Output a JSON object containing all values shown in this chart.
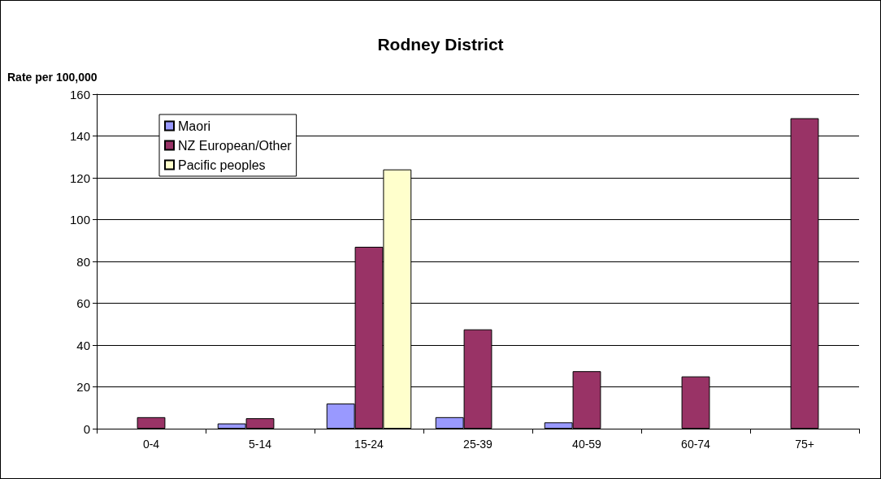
{
  "chart_data": {
    "type": "bar",
    "title": "Rodney District",
    "ylabel": "Rate per 100,000",
    "categories": [
      "0-4",
      "5-14",
      "15-24",
      "25-39",
      "40-59",
      "60-74",
      "75+"
    ],
    "series": [
      {
        "name": "Maori",
        "color": "#9999ff",
        "values": [
          null,
          2.5,
          12,
          5.5,
          3,
          null,
          null
        ]
      },
      {
        "name": "NZ European/Other",
        "color": "#993366",
        "values": [
          5.5,
          5,
          87,
          47.5,
          27.5,
          25,
          148.5
        ]
      },
      {
        "name": "Pacific peoples",
        "color": "#ffffcc",
        "values": [
          null,
          null,
          124,
          null,
          null,
          null,
          null
        ]
      }
    ],
    "ylim": [
      0,
      160
    ],
    "yticks": [
      0,
      20,
      40,
      60,
      80,
      100,
      120,
      140,
      160
    ],
    "grid": "y",
    "legend": "top left"
  }
}
